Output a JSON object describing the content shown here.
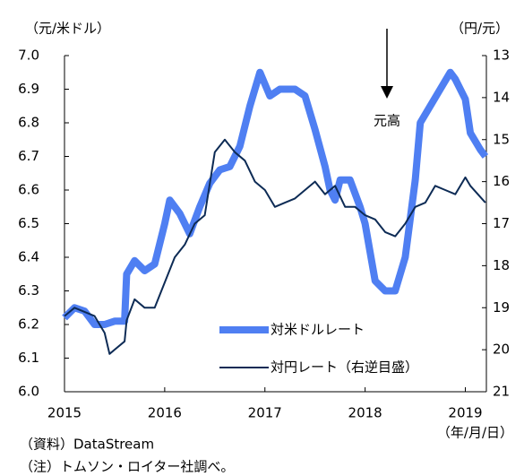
{
  "chart_data": {
    "type": "line",
    "y_axis_label": "（元/米ドル）",
    "y2_axis_label": "（円/元）",
    "x_axis_label": "（年/月/日）",
    "source": "（資料）DataStream",
    "note": "（注）トムソン・ロイター社調べ。",
    "annotation": "元高",
    "xlim": [
      2015,
      2019.21
    ],
    "xticks": [
      2015,
      2016,
      2017,
      2018,
      2019
    ],
    "ylim": [
      6.0,
      7.0
    ],
    "yticks": [
      {
        "value": 6.0,
        "label": "6.0"
      },
      {
        "value": 6.1,
        "label": "6.1"
      },
      {
        "value": 6.2,
        "label": "6.2"
      },
      {
        "value": 6.3,
        "label": "6.3"
      },
      {
        "value": 6.4,
        "label": "6.4"
      },
      {
        "value": 6.5,
        "label": "6.5"
      },
      {
        "value": 6.6,
        "label": "6.6"
      },
      {
        "value": 6.7,
        "label": "6.7"
      },
      {
        "value": 6.8,
        "label": "6.8"
      },
      {
        "value": 6.9,
        "label": "6.9"
      },
      {
        "value": 7.0,
        "label": "7.0"
      }
    ],
    "y2lim": [
      13,
      21
    ],
    "y2_inverted": true,
    "y2ticks": [
      13,
      14,
      15,
      16,
      17,
      18,
      19,
      20,
      21
    ],
    "series": [
      {
        "name": "対米ドルレート",
        "color": "#4f7ff2",
        "width": 8,
        "x": [
          2015.0,
          2015.1,
          2015.2,
          2015.3,
          2015.4,
          2015.5,
          2015.6,
          2015.62,
          2015.7,
          2015.8,
          2015.9,
          2016.0,
          2016.05,
          2016.15,
          2016.25,
          2016.35,
          2016.45,
          2016.55,
          2016.65,
          2016.75,
          2016.85,
          2016.95,
          2017.05,
          2017.15,
          2017.3,
          2017.4,
          2017.5,
          2017.6,
          2017.65,
          2017.7,
          2017.75,
          2017.85,
          2017.95,
          2018.0,
          2018.1,
          2018.2,
          2018.3,
          2018.4,
          2018.5,
          2018.55,
          2018.65,
          2018.75,
          2018.85,
          2018.9,
          2019.0,
          2019.05,
          2019.15,
          2019.2
        ],
        "values": [
          6.22,
          6.25,
          6.24,
          6.2,
          6.2,
          6.21,
          6.21,
          6.35,
          6.39,
          6.36,
          6.38,
          6.5,
          6.57,
          6.53,
          6.47,
          6.55,
          6.62,
          6.66,
          6.67,
          6.73,
          6.85,
          6.95,
          6.88,
          6.9,
          6.9,
          6.88,
          6.78,
          6.67,
          6.6,
          6.57,
          6.63,
          6.63,
          6.55,
          6.5,
          6.33,
          6.3,
          6.3,
          6.4,
          6.63,
          6.8,
          6.85,
          6.9,
          6.95,
          6.93,
          6.87,
          6.77,
          6.72,
          6.7
        ]
      },
      {
        "name": "対円レート（右逆目盛）",
        "color": "#0d2b55",
        "width": 2,
        "axis": "y2",
        "x": [
          2015.0,
          2015.1,
          2015.2,
          2015.3,
          2015.4,
          2015.45,
          2015.5,
          2015.6,
          2015.62,
          2015.7,
          2015.8,
          2015.9,
          2016.0,
          2016.1,
          2016.2,
          2016.3,
          2016.4,
          2016.5,
          2016.6,
          2016.7,
          2016.8,
          2016.9,
          2017.0,
          2017.1,
          2017.2,
          2017.3,
          2017.4,
          2017.5,
          2017.6,
          2017.7,
          2017.8,
          2017.9,
          2018.0,
          2018.1,
          2018.2,
          2018.3,
          2018.4,
          2018.5,
          2018.6,
          2018.7,
          2018.8,
          2018.9,
          2019.0,
          2019.05,
          2019.2
        ],
        "values": [
          19.2,
          19.0,
          19.1,
          19.2,
          19.6,
          20.1,
          20.0,
          19.8,
          19.3,
          18.8,
          19.0,
          19.0,
          18.4,
          17.8,
          17.5,
          17.0,
          16.8,
          15.3,
          15.0,
          15.3,
          15.5,
          16.0,
          16.2,
          16.6,
          16.5,
          16.4,
          16.2,
          16.0,
          16.3,
          16.1,
          16.6,
          16.6,
          16.8,
          16.9,
          17.2,
          17.3,
          17.0,
          16.6,
          16.5,
          16.1,
          16.2,
          16.3,
          15.9,
          16.1,
          16.5
        ]
      }
    ]
  }
}
